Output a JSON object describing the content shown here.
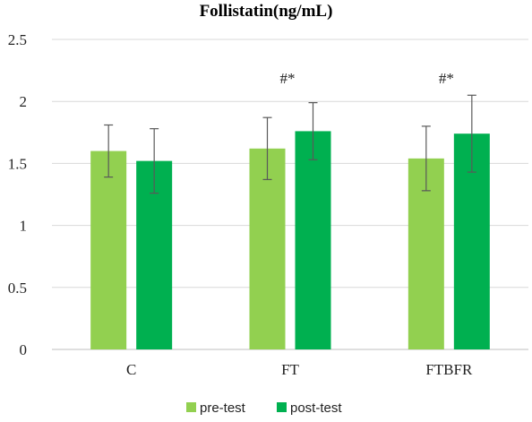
{
  "chart_data": {
    "type": "bar",
    "title": "Follistatin(ng/mL)",
    "xlabel": "",
    "ylabel": "",
    "categories": [
      "C",
      "FT",
      "FTBFR"
    ],
    "ylim": [
      0,
      2.5
    ],
    "yticks": [
      "0",
      "0.5",
      "1",
      "1.5",
      "2",
      "2.5"
    ],
    "grid": true,
    "legend_position": "bottom",
    "series": [
      {
        "name": "pre-test",
        "color": "#92d050",
        "values": [
          1.6,
          1.62,
          1.54
        ],
        "errors": [
          0.21,
          0.25,
          0.26
        ]
      },
      {
        "name": "post-test",
        "color": "#00b050",
        "values": [
          1.52,
          1.76,
          1.74
        ],
        "errors": [
          0.26,
          0.23,
          0.31
        ]
      }
    ],
    "annotations": [
      "",
      "#*",
      "#*"
    ]
  }
}
